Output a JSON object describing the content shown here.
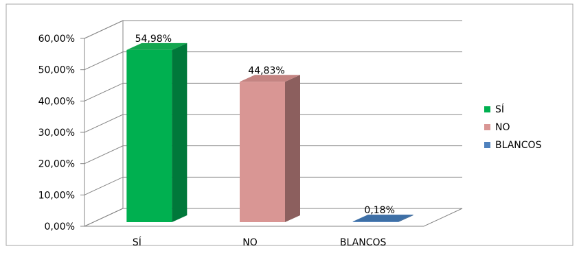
{
  "chart_data": {
    "type": "bar",
    "style": "3d-column",
    "categories": [
      "SÍ",
      "NO",
      "BLANCOS"
    ],
    "values": [
      54.98,
      44.83,
      0.18
    ],
    "value_labels": [
      "54,98%",
      "44,83%",
      "0,18%"
    ],
    "ylim": [
      0,
      60
    ],
    "y_ticks": [
      {
        "value": 0,
        "label": "0,00%"
      },
      {
        "value": 10,
        "label": "10,00%"
      },
      {
        "value": 20,
        "label": "20,00%"
      },
      {
        "value": 30,
        "label": "30,00%"
      },
      {
        "value": 40,
        "label": "40,00%"
      },
      {
        "value": 50,
        "label": "50,00%"
      },
      {
        "value": 60,
        "label": "60,00%"
      }
    ],
    "grid": true,
    "legend": {
      "placement": "right",
      "entries": [
        {
          "label": "SÍ",
          "color": "#00b050"
        },
        {
          "label": "NO",
          "color": "#d99694"
        },
        {
          "label": "BLANCOS",
          "color": "#4f81bd"
        }
      ]
    },
    "colors": [
      "#00b050",
      "#d99694",
      "#4f81bd"
    ],
    "side_colors": [
      "#00783a",
      "#8c5f5e",
      "#2f5a8a"
    ],
    "top_colors": [
      "#13a64f",
      "#c48482",
      "#3d6fa6"
    ]
  }
}
